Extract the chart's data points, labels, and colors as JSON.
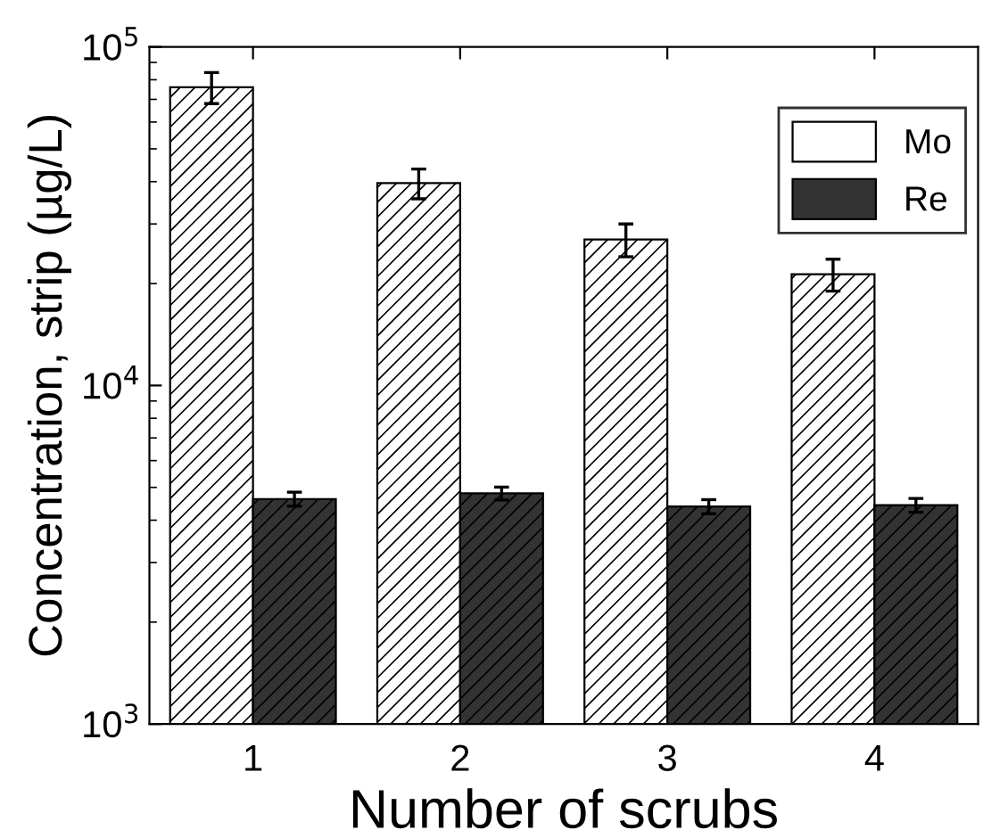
{
  "chart_data": {
    "type": "bar",
    "xlabel": "Number of scrubs",
    "ylabel": "Concentration, strip (µg/L)",
    "categories": [
      "1",
      "2",
      "3",
      "4"
    ],
    "series": [
      {
        "name": "Mo",
        "color": "#ffffff",
        "values": [
          76000,
          39600,
          27000,
          21300
        ],
        "errors": [
          8000,
          4000,
          3000,
          2300
        ]
      },
      {
        "name": "Re",
        "color": "#333333",
        "values": [
          4620,
          4800,
          4390,
          4430
        ],
        "errors": [
          220,
          210,
          210,
          210
        ]
      }
    ],
    "log": "y",
    "ylim": [
      1000,
      100000
    ],
    "yticks": [
      {
        "value": 1000,
        "label": "10$^{3}$"
      },
      {
        "value": 10000,
        "label": "10$^{4}$"
      },
      {
        "value": 100000,
        "label": "10$^{5}$"
      }
    ],
    "legend": "top right",
    "grid": false
  }
}
